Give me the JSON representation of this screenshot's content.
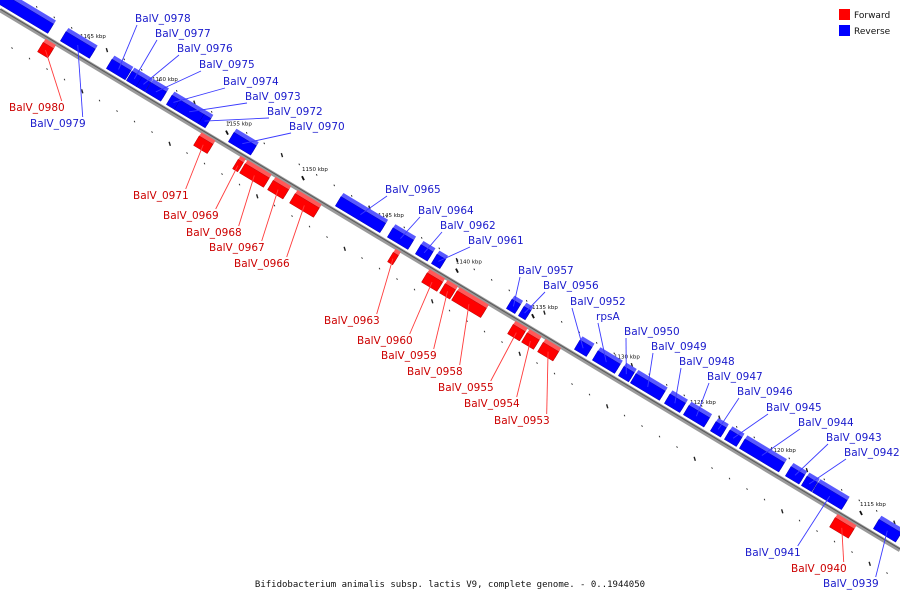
{
  "caption": "Bifidobacterium animalis subsp. lactis V9, complete genome. - 0..1944050",
  "legend": [
    {
      "label": "Forward",
      "color": "#ff0000"
    },
    {
      "label": "Reverse",
      "color": "#0000ff"
    }
  ],
  "colors": {
    "forward": "#ff0000",
    "reverse": "#0000ff",
    "backbone": "#8a8a8a"
  },
  "kbp_ticks": [
    "1165 kbp",
    "1160 kbp",
    "1155 kbp",
    "1150 kbp",
    "1145 kbp",
    "1140 kbp",
    "1135 kbp",
    "1130 kbp",
    "1125 kbp",
    "1120 kbp",
    "1115 kbp"
  ],
  "genes": [
    {
      "name": "BalV_0978",
      "strand": "reverse"
    },
    {
      "name": "BalV_0977",
      "strand": "reverse"
    },
    {
      "name": "BalV_0976",
      "strand": "reverse"
    },
    {
      "name": "BalV_0975",
      "strand": "reverse"
    },
    {
      "name": "BalV_0974",
      "strand": "reverse"
    },
    {
      "name": "BalV_0973",
      "strand": "reverse"
    },
    {
      "name": "BalV_0972",
      "strand": "reverse"
    },
    {
      "name": "BalV_0970",
      "strand": "reverse"
    },
    {
      "name": "BalV_0980",
      "strand": "forward"
    },
    {
      "name": "BalV_0979",
      "strand": "reverse"
    },
    {
      "name": "BalV_0971",
      "strand": "forward"
    },
    {
      "name": "BalV_0969",
      "strand": "forward"
    },
    {
      "name": "BalV_0968",
      "strand": "forward"
    },
    {
      "name": "BalV_0967",
      "strand": "forward"
    },
    {
      "name": "BalV_0966",
      "strand": "forward"
    },
    {
      "name": "BalV_0965",
      "strand": "reverse"
    },
    {
      "name": "BalV_0964",
      "strand": "reverse"
    },
    {
      "name": "BalV_0962",
      "strand": "reverse"
    },
    {
      "name": "BalV_0961",
      "strand": "reverse"
    },
    {
      "name": "BalV_0957",
      "strand": "reverse"
    },
    {
      "name": "BalV_0956",
      "strand": "reverse"
    },
    {
      "name": "BalV_0952",
      "strand": "reverse"
    },
    {
      "name": "rpsA",
      "strand": "reverse"
    },
    {
      "name": "BalV_0950",
      "strand": "reverse"
    },
    {
      "name": "BalV_0949",
      "strand": "reverse"
    },
    {
      "name": "BalV_0948",
      "strand": "reverse"
    },
    {
      "name": "BalV_0947",
      "strand": "reverse"
    },
    {
      "name": "BalV_0946",
      "strand": "reverse"
    },
    {
      "name": "BalV_0945",
      "strand": "reverse"
    },
    {
      "name": "BalV_0944",
      "strand": "reverse"
    },
    {
      "name": "BalV_0943",
      "strand": "reverse"
    },
    {
      "name": "BalV_0942",
      "strand": "reverse"
    },
    {
      "name": "BalV_0963",
      "strand": "forward"
    },
    {
      "name": "BalV_0960",
      "strand": "forward"
    },
    {
      "name": "BalV_0959",
      "strand": "forward"
    },
    {
      "name": "BalV_0958",
      "strand": "forward"
    },
    {
      "name": "BalV_0955",
      "strand": "forward"
    },
    {
      "name": "BalV_0954",
      "strand": "forward"
    },
    {
      "name": "BalV_0953",
      "strand": "forward"
    },
    {
      "name": "BalV_0941",
      "strand": "reverse"
    },
    {
      "name": "BalV_0940",
      "strand": "forward"
    },
    {
      "name": "BalV_0939",
      "strand": "reverse"
    }
  ]
}
